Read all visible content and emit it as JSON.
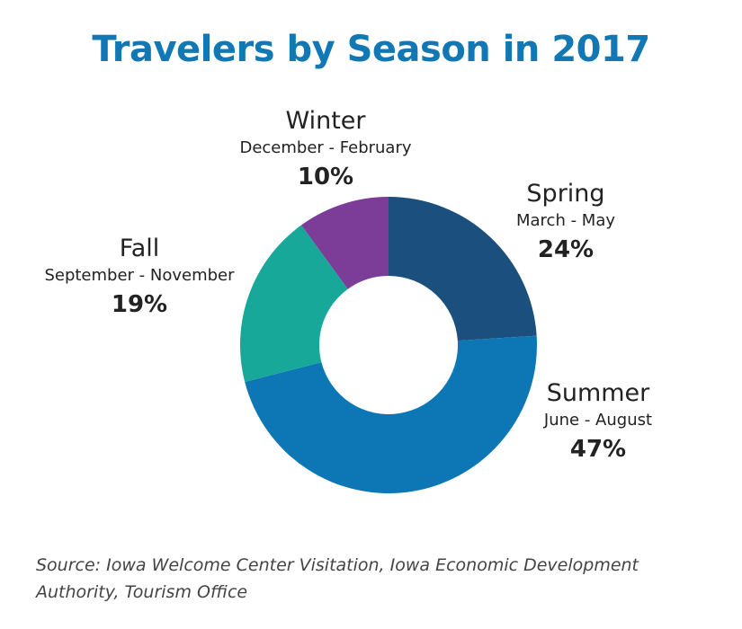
{
  "colors": {
    "title": "#1277b5",
    "spring": "#1b4f7e",
    "summer": "#0c77b4",
    "fall": "#17a89a",
    "winter": "#7b3d98"
  },
  "chart_data": {
    "type": "pie",
    "donut": true,
    "title": "Travelers by Season in 2017",
    "unit": "%",
    "slices": [
      {
        "name": "Spring",
        "months": "March - May",
        "value": 24,
        "label": "24%",
        "color": "#1b4f7e"
      },
      {
        "name": "Summer",
        "months": "June - August",
        "value": 47,
        "label": "47%",
        "color": "#0c77b4"
      },
      {
        "name": "Fall",
        "months": "September - November",
        "value": 19,
        "label": "19%",
        "color": "#17a89a"
      },
      {
        "name": "Winter",
        "months": "December - February",
        "value": 10,
        "label": "10%",
        "color": "#7b3d98"
      }
    ]
  },
  "source": "Source:  Iowa Welcome Center Visitation, Iowa Economic Development Authority, Tourism Office"
}
